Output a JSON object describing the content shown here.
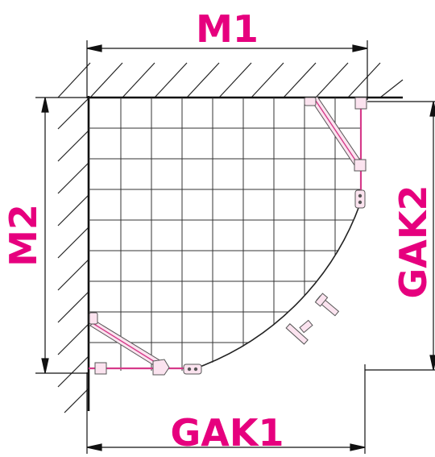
{
  "labels": {
    "m1": "M1",
    "m2": "M2",
    "gak1": "GAK1",
    "gak2": "GAK2"
  },
  "colors": {
    "label": "#e6007e",
    "line": "#1a1a1a",
    "profile": "#d63a8a",
    "panel_fill": "#fbe3ef",
    "fitting": "#8c8c8c"
  }
}
